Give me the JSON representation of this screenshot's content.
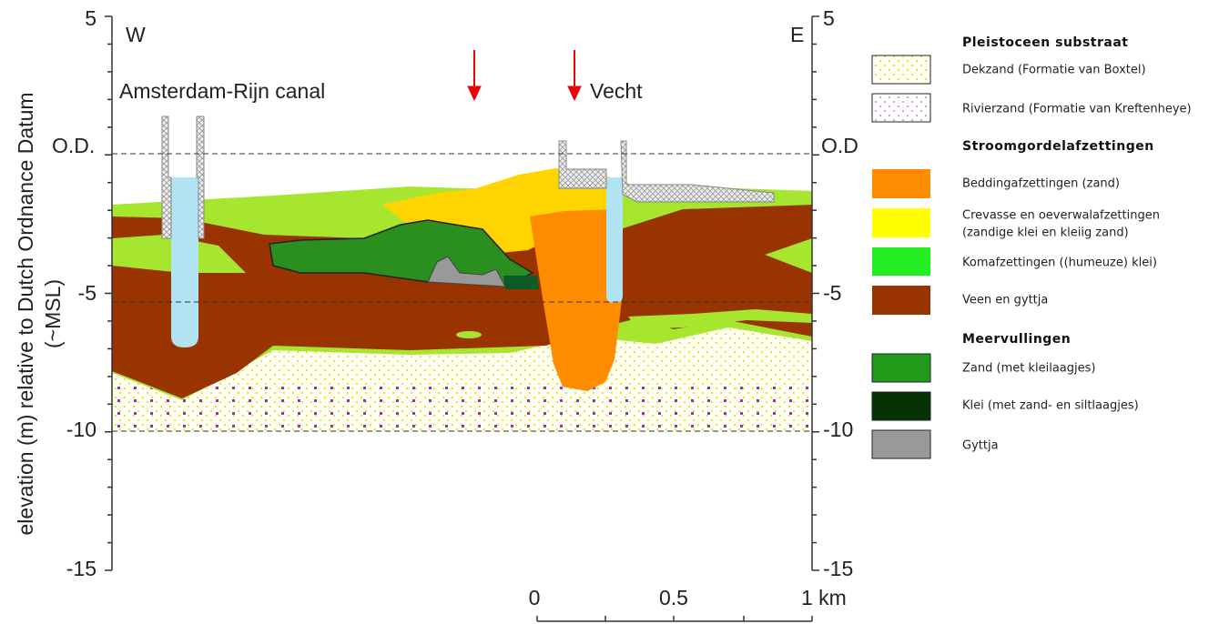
{
  "axes": {
    "y_label": [
      "elevation (m) relative to Dutch Ordnance Datum",
      "(~MSL)"
    ],
    "left_ticks": [
      "5",
      "-5",
      "-10",
      "-15"
    ],
    "right_ticks": [
      "5",
      "-5",
      "-10",
      "-15"
    ],
    "datum_left": "O.D.",
    "datum_right": "O.D"
  },
  "section": {
    "west": "W",
    "east": "E",
    "canal": "Amsterdam-Rijn canal",
    "river": "Vecht"
  },
  "scale_bar": [
    "0",
    "0.5",
    "1 km"
  ],
  "legend": {
    "groups": [
      {
        "title": "Pleistoceen substraat",
        "items": [
          [
            "Dekzand (Formatie van Boxtel)"
          ],
          [
            "Rivierzand (Formatie van Kreftenheye)"
          ]
        ]
      },
      {
        "title": "Stroomgordelafzettingen",
        "items": [
          [
            "Beddingafzettingen (zand)"
          ],
          [
            "Crevasse en oeverwalafzettingen",
            "(zandige klei en kleiig zand)"
          ],
          [
            "Komafzettingen ((humeuze) klei)"
          ],
          [
            "Veen en gyttja"
          ]
        ]
      },
      {
        "title": "Meervullingen",
        "items": [
          [
            "Zand (met kleilaagjes)"
          ],
          [
            "Klei (met zand- en siltlaagjes)"
          ],
          [
            "Gyttja"
          ]
        ]
      }
    ]
  }
}
